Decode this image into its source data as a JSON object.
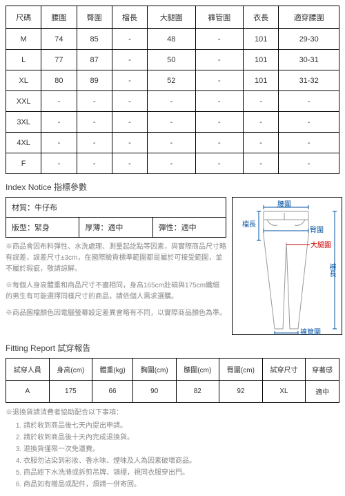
{
  "size_table": {
    "columns": [
      "尺碼",
      "腰圍",
      "臀圍",
      "檔長",
      "大腿圍",
      "褲管圍",
      "衣長",
      "適穿腰圍"
    ],
    "rows": [
      [
        "M",
        "74",
        "85",
        "-",
        "48",
        "-",
        "101",
        "29-30"
      ],
      [
        "L",
        "77",
        "87",
        "-",
        "50",
        "-",
        "101",
        "30-31"
      ],
      [
        "XL",
        "80",
        "89",
        "-",
        "52",
        "-",
        "101",
        "31-32"
      ],
      [
        "XXL",
        "-",
        "-",
        "-",
        "-",
        "-",
        "-",
        "-"
      ],
      [
        "3XL",
        "-",
        "-",
        "-",
        "-",
        "-",
        "-",
        "-"
      ],
      [
        "4XL",
        "-",
        "-",
        "-",
        "-",
        "-",
        "-",
        "-"
      ],
      [
        "F",
        "-",
        "-",
        "-",
        "-",
        "-",
        "-",
        "-"
      ]
    ]
  },
  "index_notice_title": "Index Notice 指標參數",
  "material": {
    "full": "材質：牛仔布",
    "cells": [
      "版型：緊身",
      "厚薄：適中",
      "彈性：適中"
    ]
  },
  "notes": [
    "※商品會因布料彈性、水洗處理、測量起訖點等因素，與實際商品尺寸略有誤差，誤差尺寸±3cm，在國際驗貨標準範圍都是屬於可接受範圍，並不屬於瑕疵，敬請諒解。",
    "※每個人身高體重和商品尺寸不盡相同，身高165cm壯碩與175cm纖細的男生有可能選擇同樣尺寸的商品，請依個人需求選購。",
    "※商品圖檔顏色因電腦螢幕設定差異會略有不同，以實際商品顏色為準。"
  ],
  "diagram_labels": {
    "waist": "腰圍",
    "crotch": "檔長",
    "hip": "臀圍",
    "thigh": "大腿圍",
    "length": "褲長",
    "hem": "褲管圍"
  },
  "fitting_title": "Fitting Report 試穿報告",
  "fit_table": {
    "columns": [
      "試穿人員",
      "身高(cm)",
      "體重(kg)",
      "胸圍(cm)",
      "腰圍(cm)",
      "臀圍(cm)",
      "試穿尺寸",
      "穿著感"
    ],
    "row": [
      "A",
      "175",
      "66",
      "90",
      "82",
      "92",
      "XL",
      "適中"
    ]
  },
  "return_title": "※退換貨請消費者協助配合以下事項：",
  "return_items": [
    "請於收到商品後七天內提出申請。",
    "請於收到商品後十天內完成退換貨。",
    "退換貨僅限一次免運費。",
    "衣服勿沾染到彩妝、香水味、煙味及人為因素破壞商品。",
    "商品經下水洗滌或拆剪吊牌、領標，視同衣服穿出門。",
    "商品如有贈品或配件，煩請一併寄回。"
  ]
}
